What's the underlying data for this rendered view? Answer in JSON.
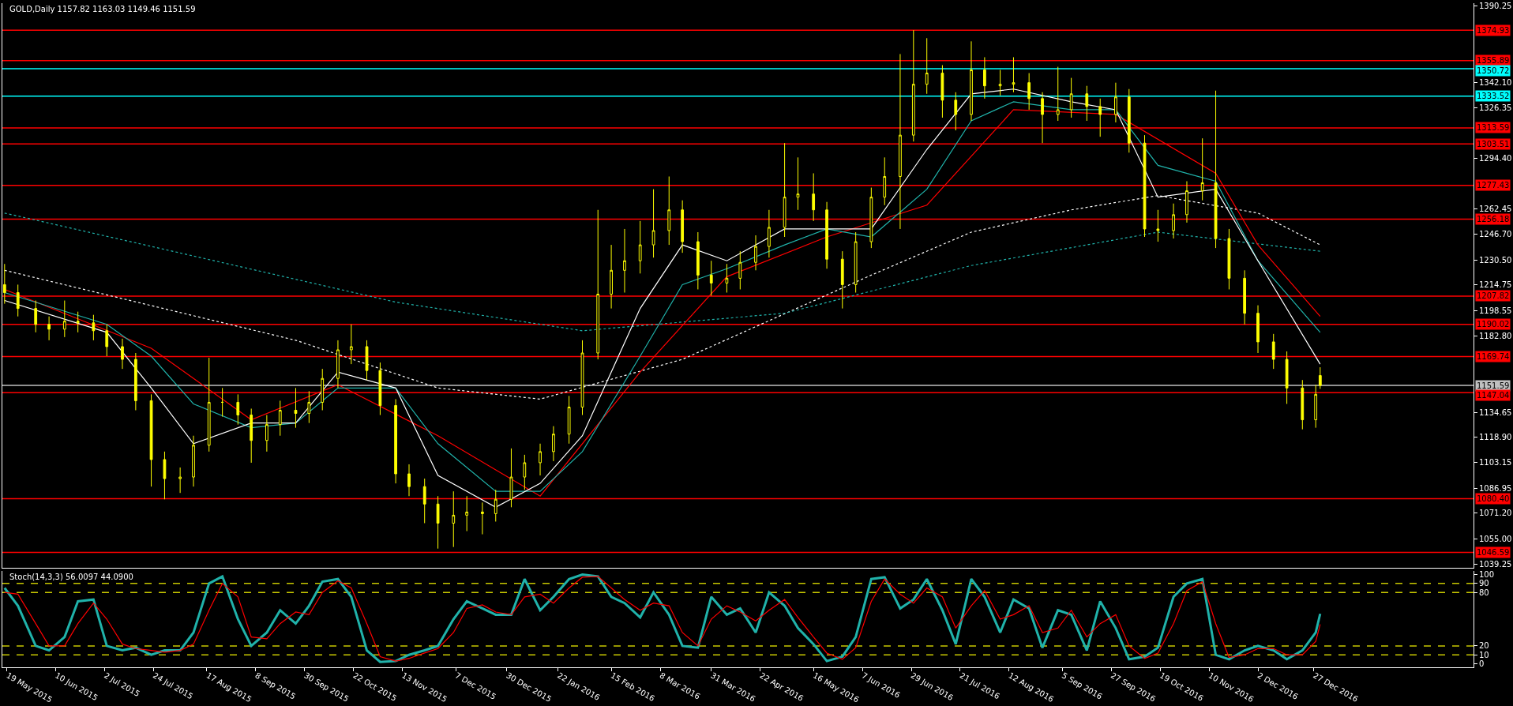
{
  "chart_data": [
    {
      "type": "candlestick",
      "title": "GOLD,Daily 1157.82 1163.03 1149.46 1151.59",
      "color": "#ffff00",
      "x": [
        "2015-05-18",
        "2015-05-24",
        "2015-06-01",
        "2015-06-07",
        "2015-06-14",
        "2015-06-20",
        "2015-06-27",
        "2015-07-03",
        "2015-07-10",
        "2015-07-16",
        "2015-07-23",
        "2015-07-29",
        "2015-08-05",
        "2015-08-11",
        "2015-08-18",
        "2015-08-24",
        "2015-08-31",
        "2015-09-06",
        "2015-09-13",
        "2015-09-19",
        "2015-09-26",
        "2015-10-02",
        "2015-10-08",
        "2015-10-15",
        "2015-10-21",
        "2015-10-28",
        "2015-11-03",
        "2015-11-10",
        "2015-11-16",
        "2015-11-23",
        "2015-11-29",
        "2015-12-06",
        "2015-12-12",
        "2015-12-19",
        "2015-12-25",
        "2016-01-01",
        "2016-01-07",
        "2016-01-14",
        "2016-01-20",
        "2016-01-27",
        "2016-02-02",
        "2016-02-09",
        "2016-02-15",
        "2016-02-21",
        "2016-02-28",
        "2016-03-05",
        "2016-03-12",
        "2016-03-18",
        "2016-03-25",
        "2016-03-31",
        "2016-04-07",
        "2016-04-13",
        "2016-04-20",
        "2016-04-26",
        "2016-05-03",
        "2016-05-09",
        "2016-05-16",
        "2016-05-22",
        "2016-05-29",
        "2016-06-04",
        "2016-06-11",
        "2016-06-17",
        "2016-06-24",
        "2016-06-30",
        "2016-07-06",
        "2016-07-13",
        "2016-07-19",
        "2016-07-26",
        "2016-08-01",
        "2016-08-08",
        "2016-08-14",
        "2016-08-21",
        "2016-08-27",
        "2016-09-03",
        "2016-09-09",
        "2016-09-16",
        "2016-09-22",
        "2016-09-29",
        "2016-10-05",
        "2016-10-12",
        "2016-10-18",
        "2016-10-25",
        "2016-10-31",
        "2016-11-07",
        "2016-11-13",
        "2016-11-19",
        "2016-11-26",
        "2016-12-02",
        "2016-12-09",
        "2016-12-15",
        "2016-12-22",
        "2016-12-28",
        "2016-12-30"
      ],
      "ohlc": [
        [
          1215,
          1228,
          1203,
          1210
        ],
        [
          1210,
          1215,
          1195,
          1200
        ],
        [
          1200,
          1205,
          1185,
          1190
        ],
        [
          1190,
          1195,
          1180,
          1187
        ],
        [
          1187,
          1205,
          1182,
          1192
        ],
        [
          1192,
          1198,
          1185,
          1191
        ],
        [
          1191,
          1196,
          1180,
          1186
        ],
        [
          1186,
          1190,
          1170,
          1176
        ],
        [
          1176,
          1181,
          1162,
          1168
        ],
        [
          1168,
          1172,
          1136,
          1142
        ],
        [
          1142,
          1146,
          1088,
          1105
        ],
        [
          1105,
          1110,
          1080,
          1093
        ],
        [
          1093,
          1100,
          1084,
          1094
        ],
        [
          1094,
          1120,
          1088,
          1114
        ],
        [
          1114,
          1169,
          1110,
          1141
        ],
        [
          1141,
          1150,
          1132,
          1141
        ],
        [
          1141,
          1146,
          1127,
          1133
        ],
        [
          1133,
          1137,
          1103,
          1117
        ],
        [
          1117,
          1133,
          1110,
          1127
        ],
        [
          1127,
          1142,
          1120,
          1136
        ],
        [
          1136,
          1150,
          1125,
          1134
        ],
        [
          1134,
          1148,
          1128,
          1141
        ],
        [
          1141,
          1162,
          1136,
          1156
        ],
        [
          1156,
          1180,
          1150,
          1174
        ],
        [
          1174,
          1190,
          1165,
          1176
        ],
        [
          1176,
          1180,
          1155,
          1161
        ],
        [
          1161,
          1166,
          1133,
          1139
        ],
        [
          1139,
          1143,
          1090,
          1096
        ],
        [
          1096,
          1102,
          1082,
          1088
        ],
        [
          1088,
          1093,
          1065,
          1077
        ],
        [
          1077,
          1082,
          1049,
          1065
        ],
        [
          1065,
          1085,
          1050,
          1070
        ],
        [
          1070,
          1082,
          1060,
          1072
        ],
        [
          1072,
          1078,
          1058,
          1071
        ],
        [
          1071,
          1086,
          1066,
          1080
        ],
        [
          1080,
          1112,
          1075,
          1094
        ],
        [
          1094,
          1108,
          1086,
          1103
        ],
        [
          1103,
          1115,
          1095,
          1110
        ],
        [
          1110,
          1126,
          1104,
          1121
        ],
        [
          1121,
          1145,
          1115,
          1138
        ],
        [
          1138,
          1180,
          1133,
          1172
        ],
        [
          1172,
          1262,
          1168,
          1209
        ],
        [
          1209,
          1240,
          1200,
          1224
        ],
        [
          1224,
          1250,
          1210,
          1230
        ],
        [
          1230,
          1255,
          1222,
          1240
        ],
        [
          1240,
          1275,
          1232,
          1249
        ],
        [
          1249,
          1283,
          1240,
          1262
        ],
        [
          1262,
          1268,
          1235,
          1242
        ],
        [
          1242,
          1248,
          1212,
          1221
        ],
        [
          1221,
          1230,
          1208,
          1216
        ],
        [
          1216,
          1228,
          1210,
          1219
        ],
        [
          1219,
          1236,
          1212,
          1229
        ],
        [
          1229,
          1246,
          1224,
          1239
        ],
        [
          1239,
          1262,
          1232,
          1251
        ],
        [
          1251,
          1304,
          1245,
          1270
        ],
        [
          1270,
          1295,
          1262,
          1272
        ],
        [
          1272,
          1285,
          1255,
          1262
        ],
        [
          1262,
          1267,
          1225,
          1231
        ],
        [
          1231,
          1236,
          1200,
          1215
        ],
        [
          1215,
          1248,
          1210,
          1242
        ],
        [
          1242,
          1276,
          1238,
          1270
        ],
        [
          1270,
          1295,
          1265,
          1283
        ],
        [
          1283,
          1360,
          1250,
          1309
        ],
        [
          1309,
          1375,
          1305,
          1341
        ],
        [
          1341,
          1370,
          1335,
          1348
        ],
        [
          1348,
          1353,
          1320,
          1331
        ],
        [
          1331,
          1336,
          1312,
          1322
        ],
        [
          1322,
          1368,
          1318,
          1350
        ],
        [
          1350,
          1358,
          1332,
          1340
        ],
        [
          1340,
          1350,
          1334,
          1341
        ],
        [
          1341,
          1358,
          1336,
          1342
        ],
        [
          1342,
          1348,
          1325,
          1332
        ],
        [
          1332,
          1336,
          1304,
          1322
        ],
        [
          1322,
          1352,
          1318,
          1325
        ],
        [
          1325,
          1345,
          1320,
          1335
        ],
        [
          1335,
          1340,
          1318,
          1327
        ],
        [
          1327,
          1332,
          1308,
          1322
        ],
        [
          1322,
          1342,
          1317,
          1333
        ],
        [
          1333,
          1338,
          1298,
          1304
        ],
        [
          1304,
          1309,
          1245,
          1250
        ],
        [
          1250,
          1262,
          1242,
          1249
        ],
        [
          1249,
          1266,
          1244,
          1259
        ],
        [
          1259,
          1280,
          1254,
          1274
        ],
        [
          1274,
          1307,
          1268,
          1279
        ],
        [
          1279,
          1337,
          1238,
          1244
        ],
        [
          1244,
          1250,
          1212,
          1219
        ],
        [
          1219,
          1224,
          1190,
          1197
        ],
        [
          1197,
          1202,
          1172,
          1179
        ],
        [
          1179,
          1184,
          1162,
          1168
        ],
        [
          1168,
          1173,
          1140,
          1150
        ],
        [
          1150,
          1155,
          1124,
          1130
        ],
        [
          1130,
          1152,
          1125,
          1146
        ],
        [
          1157.82,
          1163.03,
          1149.46,
          1151.59
        ]
      ],
      "series": [
        {
          "type": "line",
          "color": "#ffffff",
          "line_style": "dotted",
          "x": [
            "2015-05-18",
            "2015-09-26",
            "2015-11-29",
            "2016-01-14",
            "2016-03-18",
            "2016-06-11",
            "2016-07-26",
            "2016-09-09",
            "2016-10-18",
            "2016-12-02",
            "2016-12-30"
          ],
          "values": [
            1224,
            1180,
            1150,
            1143,
            1168,
            1221,
            1248,
            1262,
            1271,
            1260,
            1240
          ]
        },
        {
          "type": "line",
          "color": "#20b2aa",
          "line_style": "dotted",
          "x": [
            "2015-05-18",
            "2015-08-11",
            "2015-11-10",
            "2016-02-02",
            "2016-05-03",
            "2016-07-26",
            "2016-10-18",
            "2016-12-30"
          ],
          "values": [
            1260,
            1233,
            1204,
            1186,
            1197,
            1227,
            1248,
            1236
          ]
        },
        {
          "type": "line",
          "color": "#ff0000",
          "line_style": "solid",
          "x": [
            "2015-05-18",
            "2015-07-23",
            "2015-09-06",
            "2015-10-15",
            "2015-11-29",
            "2016-01-14",
            "2016-02-28",
            "2016-04-07",
            "2016-05-22",
            "2016-07-06",
            "2016-08-14",
            "2016-09-29",
            "2016-11-13",
            "2016-12-02",
            "2016-12-30"
          ],
          "values": [
            1212,
            1175,
            1130,
            1152,
            1120,
            1082,
            1160,
            1220,
            1245,
            1265,
            1325,
            1322,
            1285,
            1240,
            1195
          ]
        },
        {
          "type": "line",
          "color": "#20b2aa",
          "line_style": "solid",
          "x": [
            "2015-05-18",
            "2015-07-03",
            "2015-07-23",
            "2015-08-11",
            "2015-09-06",
            "2015-09-26",
            "2015-10-15",
            "2015-11-10",
            "2015-11-29",
            "2015-12-25",
            "2016-01-14",
            "2016-02-02",
            "2016-02-28",
            "2016-03-18",
            "2016-04-07",
            "2016-05-03",
            "2016-05-22",
            "2016-06-11",
            "2016-07-06",
            "2016-07-26",
            "2016-08-14",
            "2016-09-09",
            "2016-09-29",
            "2016-10-18",
            "2016-11-13",
            "2016-12-02",
            "2016-12-30"
          ],
          "values": [
            1210,
            1190,
            1170,
            1140,
            1125,
            1128,
            1150,
            1150,
            1115,
            1085,
            1085,
            1110,
            1170,
            1215,
            1225,
            1240,
            1250,
            1245,
            1275,
            1318,
            1330,
            1325,
            1325,
            1290,
            1280,
            1230,
            1185
          ]
        },
        {
          "type": "line",
          "color": "#ffffff",
          "line_style": "solid",
          "x": [
            "2015-05-18",
            "2015-07-03",
            "2015-07-23",
            "2015-08-11",
            "2015-09-06",
            "2015-09-26",
            "2015-10-15",
            "2015-11-10",
            "2015-11-29",
            "2015-12-25",
            "2016-01-14",
            "2016-02-02",
            "2016-02-28",
            "2016-03-18",
            "2016-04-07",
            "2016-05-03",
            "2016-05-22",
            "2016-06-11",
            "2016-07-06",
            "2016-07-26",
            "2016-08-14",
            "2016-09-09",
            "2016-09-29",
            "2016-10-18",
            "2016-11-13",
            "2016-12-02",
            "2016-12-30"
          ],
          "values": [
            1205,
            1185,
            1150,
            1115,
            1128,
            1128,
            1160,
            1150,
            1095,
            1075,
            1090,
            1120,
            1200,
            1240,
            1230,
            1250,
            1250,
            1250,
            1300,
            1335,
            1338,
            1330,
            1325,
            1270,
            1275,
            1230,
            1165
          ]
        }
      ],
      "xlim": [
        "2015-05-17",
        "2017-03-09"
      ],
      "ylim": [
        1037,
        1392
      ],
      "yticks": [
        1039.25,
        {
          "value": 1055,
          "label": "1055.00"
        },
        {
          "value": 1071.2,
          "label": "1071.20"
        },
        1086.95,
        1103.15,
        {
          "value": 1118.9,
          "label": "1118.90"
        },
        1134.65,
        {
          "value": 1182.8,
          "label": "1182.80"
        },
        1198.55,
        1214.75,
        {
          "value": 1230.5,
          "label": "1230.50"
        },
        {
          "value": 1246.7,
          "label": "1246.70"
        },
        1262.45,
        {
          "value": 1294.4,
          "label": "1294.40"
        },
        1326.35,
        {
          "value": 1342.1,
          "label": "1342.10"
        },
        1390.25
      ],
      "ref_lines": [
        {
          "axis": "y",
          "value": 1374.93,
          "label": "1374.93",
          "color": "#ff0000"
        },
        {
          "axis": "y",
          "value": 1355.89,
          "label": "1355.89",
          "color": "#ff0000"
        },
        {
          "axis": "y",
          "value": 1350.72,
          "label": "1350.72",
          "color": "#00ffff"
        },
        {
          "axis": "y",
          "value": 1333.52,
          "label": "1333.52",
          "color": "#00ffff"
        },
        {
          "axis": "y",
          "value": 1313.59,
          "label": "1313.59",
          "color": "#ff0000"
        },
        {
          "axis": "y",
          "value": 1303.51,
          "label": "1303.51",
          "color": "#ff0000"
        },
        {
          "axis": "y",
          "value": 1277.43,
          "label": "1277.43",
          "color": "#ff0000"
        },
        {
          "axis": "y",
          "value": 1256.18,
          "label": "1256.18",
          "color": "#ff0000"
        },
        {
          "axis": "y",
          "value": 1207.82,
          "label": "1207.82",
          "color": "#ff0000"
        },
        {
          "axis": "y",
          "value": 1190.02,
          "label": "1190.02",
          "color": "#ff0000"
        },
        {
          "axis": "y",
          "value": 1169.74,
          "label": "1169.74",
          "color": "#ff0000"
        },
        {
          "axis": "y",
          "value": 1151.59,
          "label": "1151.59",
          "color": "#c0c0c0"
        },
        {
          "axis": "y",
          "value": 1147.04,
          "label": "1147.04",
          "color": "#ff0000"
        },
        {
          "axis": "y",
          "value": 1080.4,
          "label": "1080.40",
          "color": "#ff0000"
        },
        {
          "axis": "y",
          "value": 1046.59,
          "label": "1046.59",
          "color": "#ff0000"
        }
      ],
      "tick_labels": "y"
    },
    {
      "type": "line",
      "title": "Stoch(14,3,3) 56.0097 44.0900",
      "x": [
        "2015-05-18",
        "2015-05-24",
        "2015-06-01",
        "2015-06-07",
        "2015-06-14",
        "2015-06-20",
        "2015-06-27",
        "2015-07-03",
        "2015-07-10",
        "2015-07-16",
        "2015-07-23",
        "2015-07-29",
        "2015-08-05",
        "2015-08-11",
        "2015-08-18",
        "2015-08-24",
        "2015-08-31",
        "2015-09-06",
        "2015-09-13",
        "2015-09-19",
        "2015-09-26",
        "2015-10-02",
        "2015-10-08",
        "2015-10-15",
        "2015-10-21",
        "2015-10-28",
        "2015-11-03",
        "2015-11-10",
        "2015-11-16",
        "2015-11-23",
        "2015-11-29",
        "2015-12-06",
        "2015-12-12",
        "2015-12-19",
        "2015-12-25",
        "2016-01-01",
        "2016-01-07",
        "2016-01-14",
        "2016-01-20",
        "2016-01-27",
        "2016-02-02",
        "2016-02-09",
        "2016-02-15",
        "2016-02-21",
        "2016-02-28",
        "2016-03-05",
        "2016-03-12",
        "2016-03-18",
        "2016-03-25",
        "2016-03-31",
        "2016-04-07",
        "2016-04-13",
        "2016-04-20",
        "2016-04-26",
        "2016-05-03",
        "2016-05-09",
        "2016-05-16",
        "2016-05-22",
        "2016-05-29",
        "2016-06-04",
        "2016-06-11",
        "2016-06-17",
        "2016-06-24",
        "2016-06-30",
        "2016-07-06",
        "2016-07-13",
        "2016-07-19",
        "2016-07-26",
        "2016-08-01",
        "2016-08-08",
        "2016-08-14",
        "2016-08-21",
        "2016-08-27",
        "2016-09-03",
        "2016-09-09",
        "2016-09-16",
        "2016-09-22",
        "2016-09-29",
        "2016-10-05",
        "2016-10-12",
        "2016-10-18",
        "2016-10-25",
        "2016-10-31",
        "2016-11-07",
        "2016-11-13",
        "2016-11-19",
        "2016-11-26",
        "2016-12-02",
        "2016-12-09",
        "2016-12-15",
        "2016-12-22",
        "2016-12-28",
        "2016-12-30"
      ],
      "series": [
        {
          "color": "#20b2aa",
          "values": [
            85,
            65,
            20,
            15,
            30,
            70,
            72,
            20,
            15,
            18,
            10,
            15,
            15,
            35,
            90,
            98,
            50,
            20,
            35,
            60,
            45,
            65,
            92,
            95,
            75,
            15,
            2,
            3,
            10,
            15,
            20,
            50,
            70,
            62,
            55,
            55,
            95,
            60,
            75,
            95,
            100,
            98,
            75,
            68,
            52,
            80,
            55,
            20,
            18,
            75,
            55,
            62,
            35,
            80,
            65,
            40,
            22,
            3,
            8,
            30,
            95,
            97,
            62,
            72,
            95,
            60,
            22,
            95,
            75,
            35,
            72,
            62,
            18,
            60,
            55,
            15,
            70,
            40,
            5,
            8,
            18,
            75,
            90,
            95,
            10,
            5,
            15,
            20,
            15,
            5,
            15,
            35,
            56.0097
          ]
        },
        {
          "color": "#ff0000",
          "values": [
            80,
            78,
            45,
            20,
            20,
            45,
            68,
            50,
            22,
            17,
            15,
            13,
            15,
            22,
            60,
            90,
            75,
            30,
            28,
            45,
            58,
            55,
            80,
            93,
            85,
            45,
            8,
            3,
            6,
            12,
            17,
            35,
            62,
            66,
            58,
            55,
            75,
            78,
            68,
            85,
            97,
            98,
            85,
            72,
            60,
            68,
            65,
            35,
            20,
            50,
            65,
            58,
            48,
            60,
            72,
            52,
            30,
            12,
            5,
            18,
            70,
            95,
            78,
            68,
            85,
            75,
            40,
            65,
            82,
            50,
            55,
            65,
            35,
            40,
            60,
            30,
            45,
            55,
            20,
            6,
            12,
            45,
            82,
            92,
            45,
            7,
            10,
            17,
            17,
            10,
            10,
            25,
            44.09
          ]
        }
      ],
      "xlim": [
        "2015-05-17",
        "2017-03-09"
      ],
      "ylim": [
        -4,
        104
      ],
      "yticks": [
        0,
        10,
        20,
        80,
        90,
        100
      ],
      "xticks": [
        {
          "value": "2015-05-19",
          "label": "19 May 2015"
        },
        {
          "value": "2015-06-10",
          "label": "10 Jun 2015"
        },
        {
          "value": "2015-07-02",
          "label": "2 Jul 2015"
        },
        {
          "value": "2015-07-24",
          "label": "24 Jul 2015"
        },
        {
          "value": "2015-08-17",
          "label": "17 Aug 2015"
        },
        {
          "value": "2015-09-08",
          "label": "8 Sep 2015"
        },
        {
          "value": "2015-09-30",
          "label": "30 Sep 2015"
        },
        {
          "value": "2015-10-22",
          "label": "22 Oct 2015"
        },
        {
          "value": "2015-11-13",
          "label": "13 Nov 2015"
        },
        {
          "value": "2015-12-07",
          "label": "7 Dec 2015"
        },
        {
          "value": "2015-12-30",
          "label": "30 Dec 2015"
        },
        {
          "value": "2016-01-22",
          "label": "22 Jan 2016"
        },
        {
          "value": "2016-02-15",
          "label": "15 Feb 2016"
        },
        {
          "value": "2016-03-08",
          "label": "8 Mar 2016"
        },
        {
          "value": "2016-03-31",
          "label": "31 Mar 2016"
        },
        {
          "value": "2016-04-22",
          "label": "22 Apr 2016"
        },
        {
          "value": "2016-05-16",
          "label": "16 May 2016"
        },
        {
          "value": "2016-06-07",
          "label": "7 Jun 2016"
        },
        {
          "value": "2016-06-29",
          "label": "29 Jun 2016"
        },
        {
          "value": "2016-07-21",
          "label": "21 Jul 2016"
        },
        {
          "value": "2016-08-12",
          "label": "12 Aug 2016"
        },
        {
          "value": "2016-09-05",
          "label": "5 Sep 2016"
        },
        {
          "value": "2016-09-27",
          "label": "27 Sep 2016"
        },
        {
          "value": "2016-10-19",
          "label": "19 Oct 2016"
        },
        {
          "value": "2016-11-10",
          "label": "10 Nov 2016"
        },
        {
          "value": "2016-12-02",
          "label": "2 Dec 2016"
        },
        {
          "value": "2016-12-27",
          "label": "27 Dec 2016"
        }
      ],
      "ref_lines": [
        {
          "axis": "y",
          "value": 90,
          "color": "#c8c800",
          "line_style": "dashed"
        },
        {
          "axis": "y",
          "value": 80,
          "color": "#c8c800",
          "line_style": "dashed"
        },
        {
          "axis": "y",
          "value": 20,
          "color": "#c8c800",
          "line_style": "dashed"
        },
        {
          "axis": "y",
          "value": 10,
          "color": "#c8c800",
          "line_style": "dashed"
        }
      ]
    }
  ]
}
